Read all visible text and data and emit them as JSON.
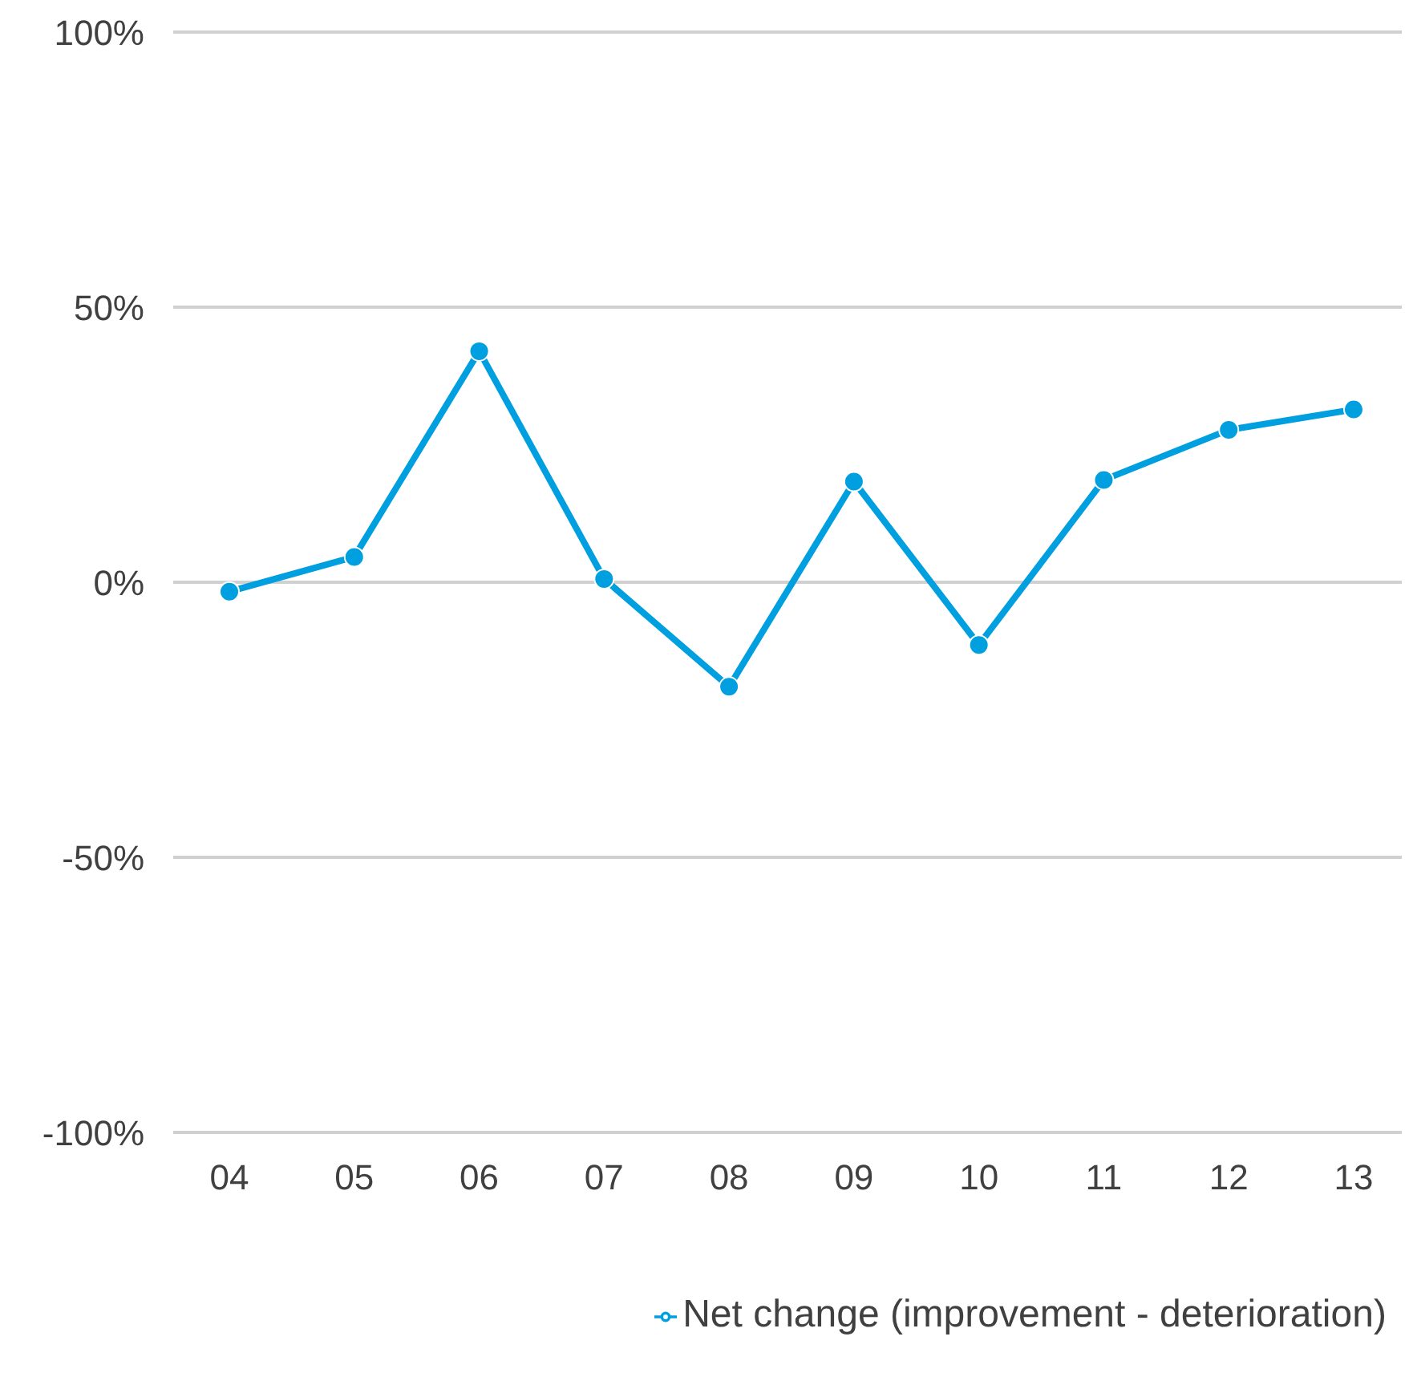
{
  "chart_data": {
    "type": "line",
    "categories": [
      "04",
      "05",
      "06",
      "07",
      "08",
      "09",
      "10",
      "11",
      "12",
      "13"
    ],
    "series": [
      {
        "name": "Net change (improvement - deterioration)",
        "color": "#009fdf",
        "values": [
          -1.7,
          4.6,
          42,
          0.6,
          -19,
          18.3,
          -11.4,
          18.6,
          27.7,
          31.4
        ]
      }
    ],
    "ylim": [
      -100,
      100
    ],
    "yticks": [
      {
        "value": -100,
        "label": "-100%"
      },
      {
        "value": -50,
        "label": "-50%"
      },
      {
        "value": 0,
        "label": "0%"
      },
      {
        "value": 50,
        "label": "50%"
      },
      {
        "value": 100,
        "label": "100%"
      }
    ],
    "grid": "y",
    "legend": "bottom",
    "marker": "circle",
    "line_style": "solid"
  }
}
